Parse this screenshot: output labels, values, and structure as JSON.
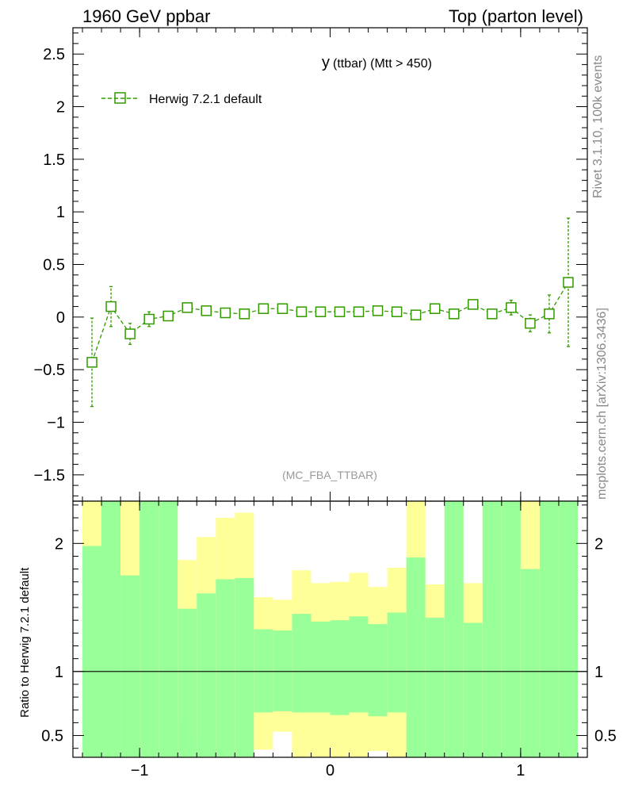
{
  "header": {
    "left": "1960 GeV ppbar",
    "right": "Top (parton level)"
  },
  "side_texts": {
    "rivet": "Rivet 3.1.10,  100k events",
    "mcplots": "mcplots.cern.ch [arXiv:1306.3436]"
  },
  "colors": {
    "series": "#339900",
    "band_inner": "#99ff99",
    "band_outer": "#ffff99"
  },
  "chart_data": [
    {
      "type": "line",
      "title_main": "y",
      "title_sub": "(ttbar) (Mtt > 450)",
      "watermark": "(MC_FBA_TTBAR)",
      "xlim": [
        -1.35,
        1.35
      ],
      "ylim": [
        -1.75,
        2.75
      ],
      "yticks": [
        -1.5,
        -1,
        -0.5,
        0,
        0.5,
        1,
        1.5,
        2,
        2.5
      ],
      "ytick_labels": [
        "−1.5",
        "−1",
        "−0.5",
        "0",
        "0.5",
        "1",
        "1.5",
        "2",
        "2.5"
      ],
      "legend_position": "top-left",
      "series": [
        {
          "name": "Herwig 7.2.1 default",
          "x": [
            -1.25,
            -1.15,
            -1.05,
            -0.95,
            -0.85,
            -0.75,
            -0.65,
            -0.55,
            -0.45,
            -0.35,
            -0.25,
            -0.15,
            -0.05,
            0.05,
            0.15,
            0.25,
            0.35,
            0.45,
            0.55,
            0.65,
            0.75,
            0.85,
            0.95,
            1.05,
            1.15,
            1.25
          ],
          "y": [
            -0.43,
            0.1,
            -0.16,
            -0.02,
            0.01,
            0.09,
            0.06,
            0.04,
            0.03,
            0.08,
            0.08,
            0.05,
            0.05,
            0.05,
            0.05,
            0.06,
            0.05,
            0.02,
            0.08,
            0.03,
            0.12,
            0.03,
            0.09,
            -0.06,
            0.03,
            0.33
          ],
          "err": [
            0.42,
            0.19,
            0.1,
            0.07,
            0.04,
            0.03,
            0.03,
            0.02,
            0.02,
            0.03,
            0.03,
            0.03,
            0.02,
            0.02,
            0.02,
            0.03,
            0.03,
            0.02,
            0.03,
            0.03,
            0.03,
            0.04,
            0.07,
            0.08,
            0.18,
            0.61
          ]
        }
      ]
    },
    {
      "type": "area",
      "ylabel": "Ratio to Herwig 7.2.1 default",
      "xlim": [
        -1.35,
        1.35
      ],
      "ylim": [
        0.33,
        2.33
      ],
      "xticks": [
        -1,
        0,
        1
      ],
      "xtick_labels": [
        "−1",
        "0",
        "1"
      ],
      "yticks": [
        0.5,
        1,
        2
      ],
      "ytick_labels": [
        "0.5",
        "1",
        "2"
      ],
      "bin_edges": [
        -1.3,
        -1.2,
        -1.1,
        -1.0,
        -0.9,
        -0.8,
        -0.7,
        -0.6,
        -0.5,
        -0.4,
        -0.3,
        -0.2,
        -0.1,
        0.0,
        0.1,
        0.2,
        0.3,
        0.4,
        0.5,
        0.6,
        0.7,
        0.8,
        0.9,
        1.0,
        1.1,
        1.2,
        1.3
      ],
      "inner_band_upper": [
        1.98,
        2.4,
        1.75,
        2.4,
        2.4,
        1.49,
        1.61,
        1.72,
        1.73,
        1.33,
        1.32,
        1.45,
        1.39,
        1.4,
        1.43,
        1.37,
        1.46,
        1.89,
        1.42,
        2.4,
        1.38,
        2.4,
        2.4,
        1.8,
        2.4,
        2.4
      ],
      "inner_band_lower": [
        0.0,
        0.0,
        0.0,
        0.0,
        0.0,
        0.0,
        0.0,
        0.0,
        0.0,
        0.0,
        0.0,
        0.0,
        0.0,
        0.0,
        0.0,
        0.0,
        0.0,
        0.0,
        0.0,
        0.0,
        0.0,
        0.0,
        0.0,
        0.0,
        0.0,
        0.0
      ],
      "outer_band_upper": [
        2.4,
        2.4,
        2.4,
        2.4,
        2.4,
        1.87,
        2.05,
        2.2,
        2.24,
        1.58,
        1.56,
        1.79,
        1.69,
        1.7,
        1.77,
        1.66,
        1.81,
        2.4,
        1.68,
        2.4,
        1.69,
        2.4,
        2.4,
        2.4,
        2.4,
        2.4
      ],
      "outer_band_lower": [
        0.0,
        0.0,
        0.0,
        0.0,
        0.0,
        0.0,
        0.0,
        0.0,
        0.0,
        0.0,
        0.0,
        0.0,
        0.0,
        0.0,
        0.0,
        0.0,
        0.0,
        0.0,
        0.0,
        0.0,
        0.0,
        0.0,
        0.0,
        0.0,
        0.0,
        0.0
      ],
      "inner_lower_actual": [
        0.0,
        0.0,
        0.0,
        0.0,
        0.0,
        0.0,
        0.0,
        0.0,
        0.0,
        0.68,
        0.69,
        0.68,
        0.68,
        0.66,
        0.68,
        0.65,
        0.68,
        0.0,
        0.0,
        0.0,
        0.0,
        0.0,
        0.0,
        0.0,
        0.0,
        0.0
      ],
      "outer_lower_actual": [
        0.0,
        0.0,
        0.0,
        0.0,
        0.0,
        0.63,
        0.46,
        0.0,
        0.0,
        0.39,
        0.53,
        0.33,
        0.33,
        0.33,
        0.33,
        0.38,
        0.33,
        0.33,
        0.0,
        0.0,
        0.0,
        0.0,
        0.0,
        0.0,
        0.0,
        0.0
      ],
      "lower_pattern": [
        [
          "g",
          "g",
          "g",
          "g",
          "g",
          "g",
          "g",
          "g",
          "g",
          "g"
        ],
        [
          "y",
          "y",
          "g",
          "g",
          "g",
          "g",
          "g",
          "g",
          "g",
          "g"
        ],
        [
          "y",
          "y",
          "y",
          "g",
          "g",
          "g",
          "g",
          "g",
          "g",
          "g"
        ],
        [
          "g",
          "g",
          "g",
          "g",
          "g",
          "g",
          "g",
          "g",
          "g",
          "g"
        ]
      ]
    }
  ]
}
